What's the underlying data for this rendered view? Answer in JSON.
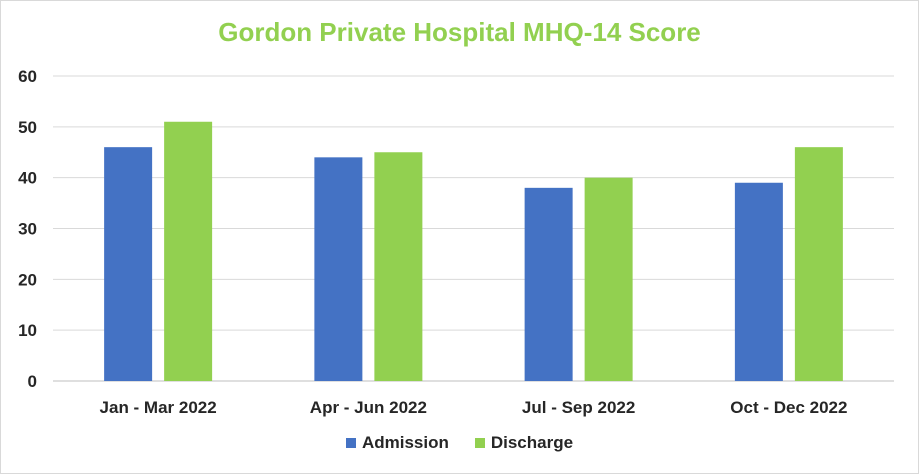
{
  "chart_data": {
    "type": "bar",
    "title": "Gordon Private Hospital MHQ-14 Score",
    "xlabel": "",
    "ylabel": "",
    "categories": [
      "Jan - Mar 2022",
      "Apr - Jun 2022",
      "Jul - Sep 2022",
      "Oct - Dec 2022"
    ],
    "series": [
      {
        "name": "Admission",
        "color": "#4472c4",
        "values": [
          46,
          44,
          38,
          39
        ]
      },
      {
        "name": "Discharge",
        "color": "#92d050",
        "values": [
          51,
          45,
          40,
          46
        ]
      }
    ],
    "ylim": [
      0,
      60
    ],
    "yticks": [
      0,
      10,
      20,
      30,
      40,
      50,
      60
    ],
    "grid": true,
    "legend_position": "bottom"
  }
}
